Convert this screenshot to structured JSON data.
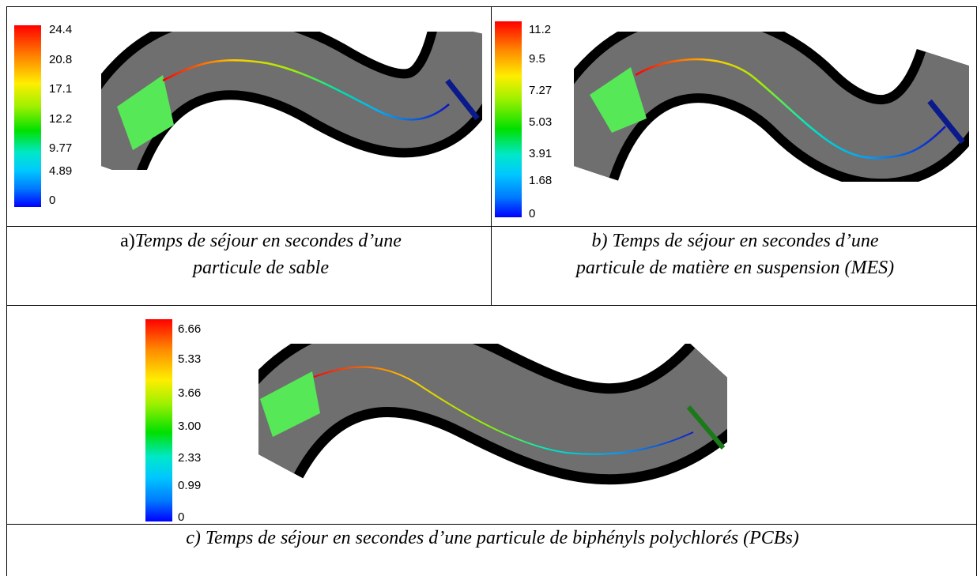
{
  "panel_a": {
    "legend_ticks": [
      "24.4",
      "20.8",
      "17.1",
      "12.2",
      "9.77",
      "4.89",
      "0"
    ],
    "caption_prefix": "a)",
    "caption_line1": "Temps de séjour  en secondes d’une",
    "caption_line2": "particule  de sable"
  },
  "panel_b": {
    "legend_ticks": [
      "11.2",
      "9.5",
      "7.27",
      "5.03",
      "3.91",
      "1.68",
      "0"
    ],
    "caption_line1": "b) Temps de séjour  en secondes d’une",
    "caption_line2": "particule  de matière en suspension (MES)"
  },
  "panel_c": {
    "legend_ticks": [
      "6.66",
      "5.33",
      "3.66",
      "3.00",
      "2.33",
      "0.99",
      "0"
    ],
    "caption": "c) Temps de séjour  en secondes d’une particule de  biphényls polychlorés (PCBs)"
  },
  "colors": {
    "channel_wall": "#000000",
    "channel_floor": "#6f6f6f",
    "inlet": "#57e857",
    "outlet_ab": "#0a1a8c",
    "outlet_c": "#1a7a1a"
  }
}
